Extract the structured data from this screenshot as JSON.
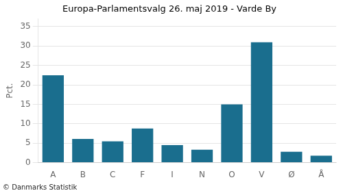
{
  "chart_data": {
    "type": "bar",
    "title": "Europa-Parlamentsvalg 26. maj 2019 - Varde By",
    "ylabel": "Pct.",
    "footer": "© Danmarks Statistik",
    "categories": [
      "A",
      "B",
      "C",
      "F",
      "I",
      "N",
      "O",
      "V",
      "Ø",
      "Å"
    ],
    "values": [
      22.5,
      6.1,
      5.5,
      8.8,
      4.5,
      3.3,
      15.0,
      31.0,
      2.8,
      1.8
    ],
    "color": "#1a6e8e",
    "ylim": [
      0,
      37
    ],
    "yticks": [
      0,
      5,
      10,
      15,
      20,
      25,
      30,
      35
    ],
    "grid": true
  }
}
